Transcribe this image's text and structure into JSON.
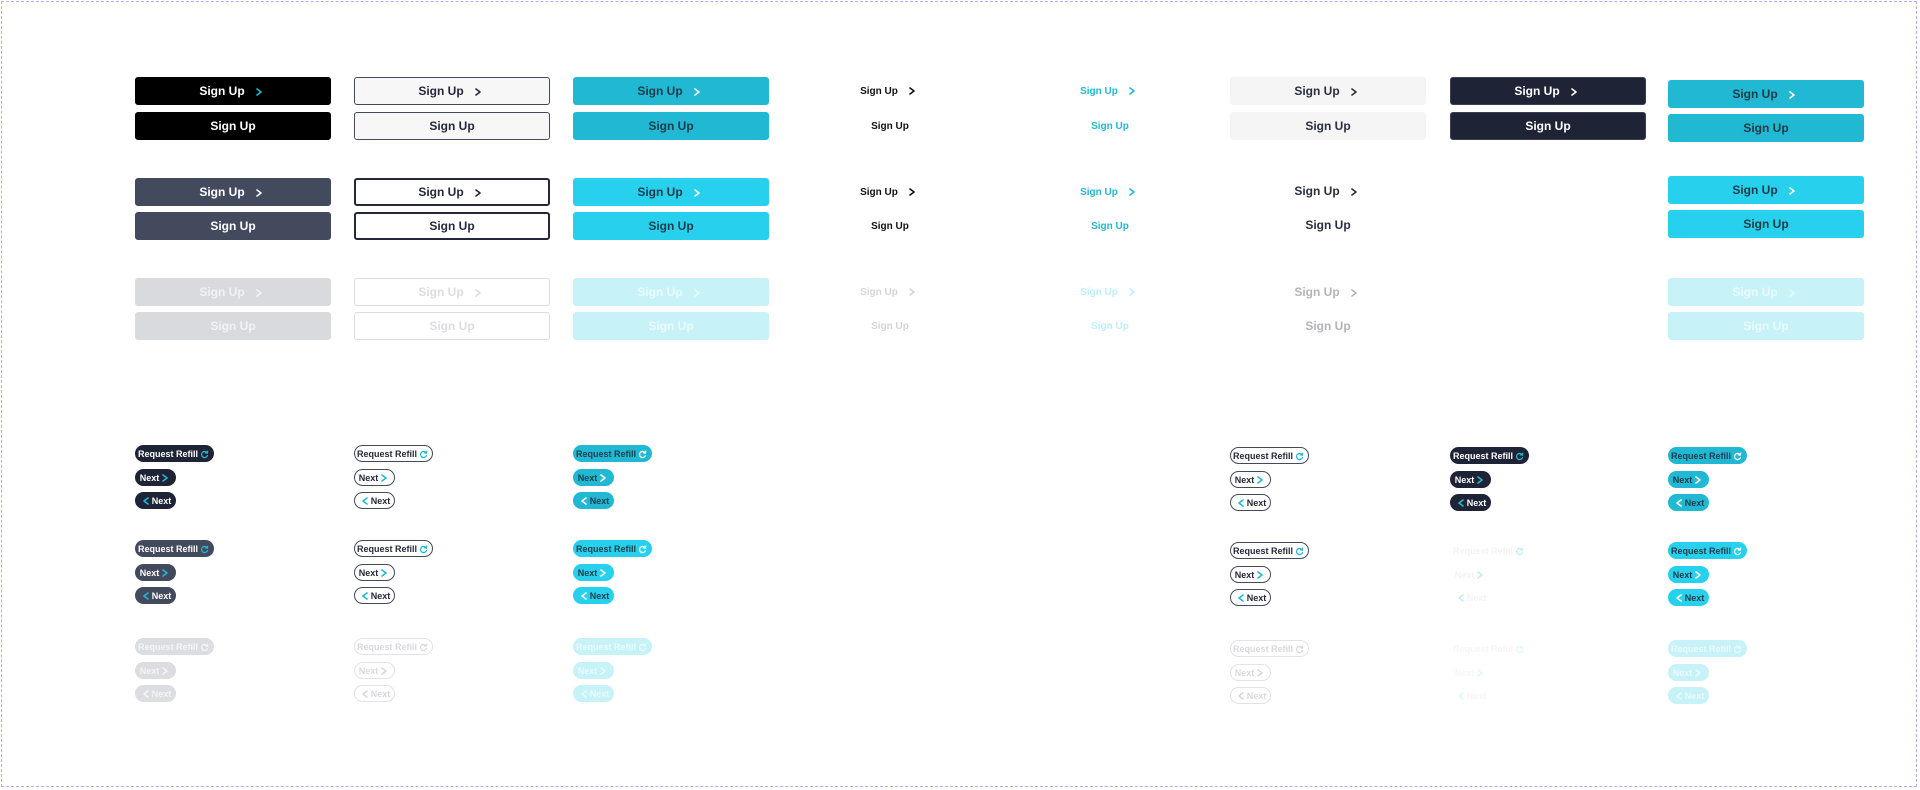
{
  "labels": {
    "sign_up": "Sign Up",
    "request_refill": "Request Refill",
    "next": "Next"
  },
  "icons": {
    "arrow": "chevron-right-icon",
    "back": "chevron-left-icon",
    "refill": "refresh-icon"
  },
  "colors": {
    "black": "#000000",
    "navy": "#1f2336",
    "slate": "#434a5e",
    "teal": "#20b8d3",
    "cyan": "#27d0ec",
    "gray_disabled": "#d9dade",
    "cyan_disabled": "#c7f2f8",
    "frame_border": "#b9a7f2"
  }
}
